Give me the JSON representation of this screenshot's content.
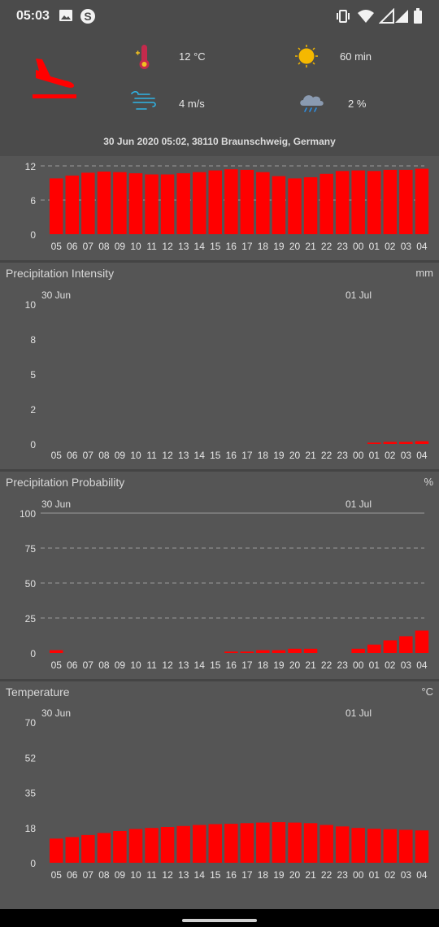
{
  "status_bar": {
    "time": "05:03",
    "icons": [
      "gallery-icon",
      "s-app-icon",
      "vibrate-icon",
      "wifi-icon",
      "signal-icon",
      "battery-icon"
    ]
  },
  "header": {
    "logo_icon": "airplane-landing-icon",
    "temperature": "12 °C",
    "sunshine": "60 min",
    "wind": "4 m/s",
    "precip_prob": "2 %",
    "location_line": "30 Jun 2020 05:02,  38110 Braunschweig, Germany",
    "accent_color": "#ff0000"
  },
  "hours": [
    "05",
    "06",
    "07",
    "08",
    "09",
    "10",
    "11",
    "12",
    "13",
    "14",
    "15",
    "16",
    "17",
    "18",
    "19",
    "20",
    "21",
    "22",
    "23",
    "00",
    "01",
    "02",
    "03",
    "04"
  ],
  "chart_data": [
    {
      "type": "bar",
      "id": "top",
      "title": "",
      "unit": "",
      "y_ticks": [
        "12",
        "6",
        "0"
      ],
      "ylim": [
        0,
        12
      ],
      "grid": "dashed",
      "values": [
        9.8,
        10.3,
        10.8,
        11.0,
        10.9,
        10.7,
        10.5,
        10.5,
        10.7,
        10.9,
        11.2,
        11.4,
        11.3,
        10.9,
        10.2,
        9.8,
        10.0,
        10.6,
        11.1,
        11.2,
        11.1,
        11.3,
        11.3,
        11.5
      ],
      "color": "#ff0000"
    },
    {
      "type": "bar",
      "id": "precip-intensity",
      "title": "Precipitation Intensity",
      "unit": "mm",
      "day_labels": [
        "30 Jun",
        "01 Jul"
      ],
      "y_ticks": [
        "10",
        "8",
        "5",
        "2",
        "0"
      ],
      "ylim": [
        0,
        10
      ],
      "grid": "none",
      "values": [
        0,
        0,
        0,
        0,
        0,
        0,
        0,
        0,
        0,
        0,
        0,
        0,
        0,
        0,
        0,
        0,
        0,
        0,
        0,
        0,
        0.1,
        0.15,
        0.15,
        0.2
      ],
      "color": "#ff0000"
    },
    {
      "type": "bar",
      "id": "precip-probability",
      "title": "Precipitation Probability",
      "unit": "%",
      "day_labels": [
        "30 Jun",
        "01 Jul"
      ],
      "y_ticks": [
        "100",
        "75",
        "50",
        "25",
        "0"
      ],
      "ylim": [
        0,
        100
      ],
      "grid": "dashed",
      "values": [
        2,
        0,
        0,
        0,
        0,
        0,
        0,
        0,
        0,
        0,
        0,
        1,
        1,
        2,
        2,
        3,
        3,
        0,
        0,
        3,
        6,
        9,
        12,
        16
      ],
      "color": "#ff0000"
    },
    {
      "type": "bar",
      "id": "temperature",
      "title": "Temperature",
      "unit": "°C",
      "day_labels": [
        "30 Jun",
        "01 Jul"
      ],
      "y_ticks": [
        "70",
        "52",
        "35",
        "18",
        "0"
      ],
      "ylim": [
        0,
        70
      ],
      "grid": "none",
      "values": [
        12,
        12.8,
        13.8,
        14.8,
        15.8,
        16.8,
        17.3,
        17.8,
        18.3,
        18.8,
        19.2,
        19.4,
        19.7,
        20,
        20.2,
        20,
        19.7,
        18.8,
        18.1,
        17.3,
        16.9,
        16.7,
        16.4,
        16.1
      ],
      "color": "#ff0000"
    }
  ]
}
